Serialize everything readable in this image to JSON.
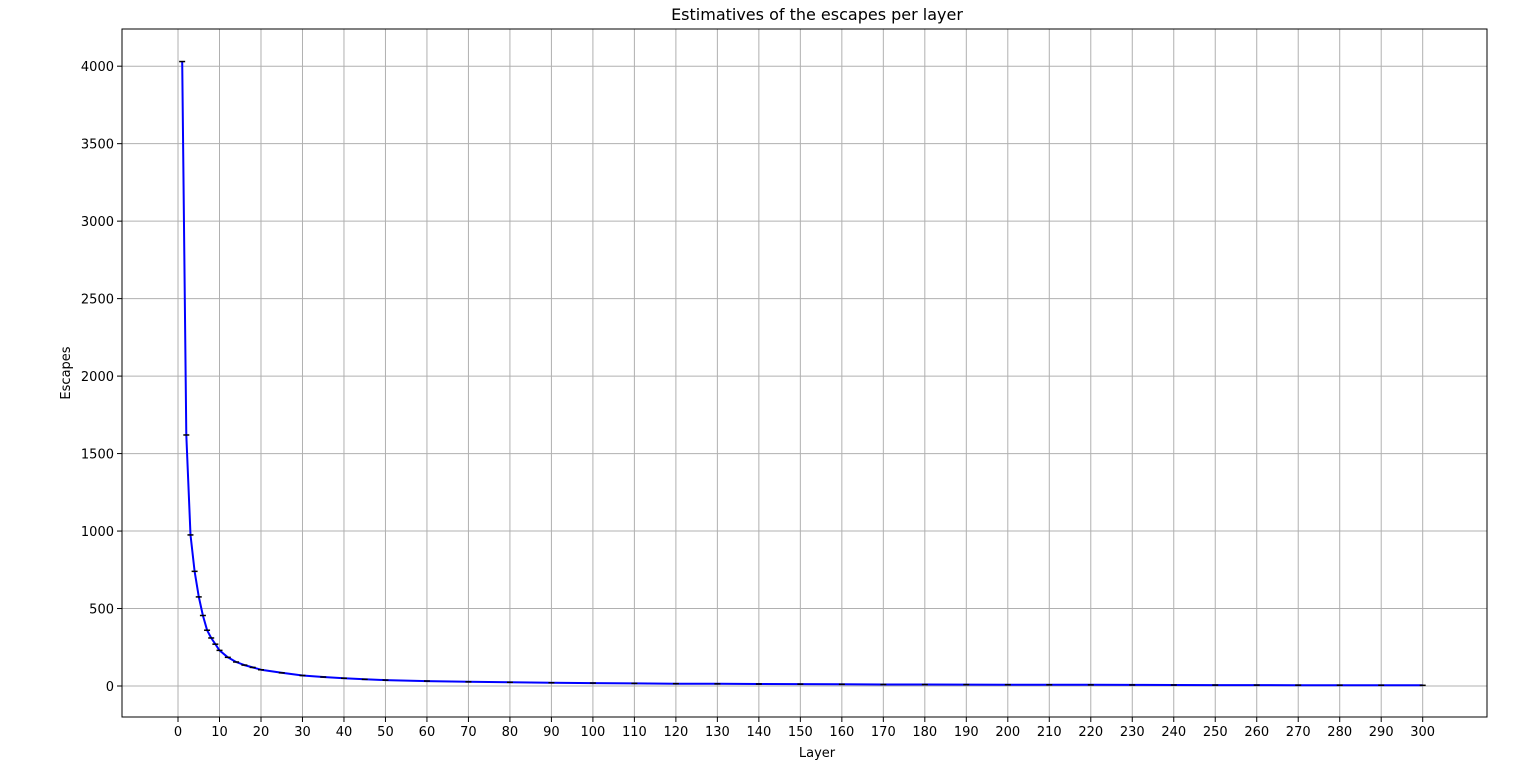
{
  "chart_data": {
    "type": "line",
    "title": "Estimatives of the escapes per layer",
    "xlabel": "Layer",
    "ylabel": "Escapes",
    "xlim": [
      -13.5,
      315.5
    ],
    "ylim": [
      -200,
      4240
    ],
    "x_ticks": [
      0,
      10,
      20,
      30,
      40,
      50,
      60,
      70,
      80,
      90,
      100,
      110,
      120,
      130,
      140,
      150,
      160,
      170,
      180,
      190,
      200,
      210,
      220,
      230,
      240,
      250,
      260,
      270,
      280,
      290,
      300
    ],
    "y_ticks": [
      0,
      500,
      1000,
      1500,
      2000,
      2500,
      3000,
      3500,
      4000
    ],
    "grid": true,
    "legend": "none",
    "colors": {
      "line": "#0000ff",
      "markers": "#000000",
      "grid": "#b0b0b0",
      "axes": "#000000"
    },
    "series": [
      {
        "x": [
          1,
          2,
          3,
          4,
          5,
          6,
          7,
          8,
          9,
          10,
          12,
          14,
          16,
          18,
          20,
          25,
          30,
          35,
          40,
          45,
          50,
          60,
          70,
          80,
          90,
          100,
          110,
          120,
          130,
          140,
          150,
          160,
          170,
          180,
          190,
          200,
          210,
          220,
          230,
          240,
          250,
          260,
          270,
          280,
          290,
          300
        ],
        "values": [
          4030,
          1620,
          975,
          740,
          575,
          455,
          360,
          310,
          270,
          230,
          185,
          155,
          135,
          120,
          105,
          85,
          68,
          58,
          50,
          43,
          38,
          32,
          27,
          24,
          21,
          19,
          17,
          15,
          14,
          13,
          12,
          11,
          10,
          9.5,
          9,
          8.5,
          8,
          7.5,
          7,
          6.5,
          6,
          5.8,
          5.5,
          5.2,
          5,
          4.5
        ]
      }
    ]
  }
}
